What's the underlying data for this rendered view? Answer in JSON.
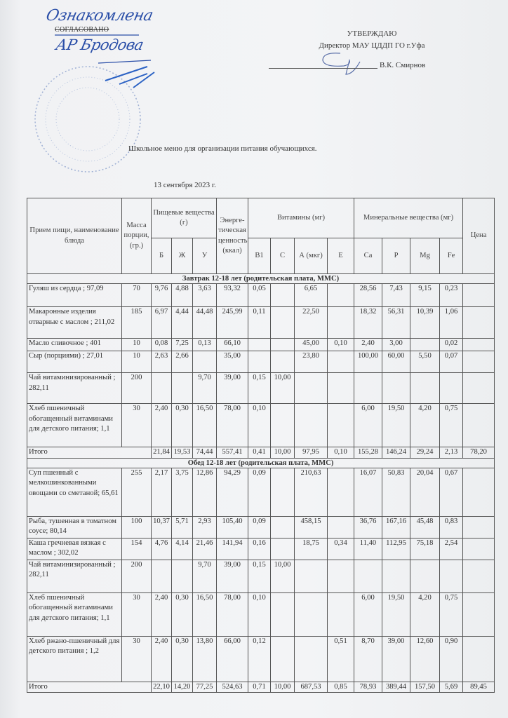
{
  "header": {
    "agreed_handwritten": "Ознакомлена",
    "agreed_label": "СОГЛАСОВАНО",
    "agreed_signature": "АР Бродова",
    "approve_label": "УТВЕРЖДАЮ",
    "approve_position": "Директор МАУ ЦДДП ГО г.Уфа",
    "approve_name": "В.К. Смирнов"
  },
  "title": "Школьное меню для организации питания обучающихся.",
  "date": "13 сентября 2023 г.",
  "table": {
    "headers": {
      "meal": "Прием пищи, наименование блюда",
      "mass": "Масса порции, (гр.)",
      "nutrients": "Пищевые вещества (г)",
      "energy": "Энерге-тическая ценность (ккал)",
      "vitamins": "Витамины (мг)",
      "minerals": "Минеральные вещества (мг)",
      "price": "Цена",
      "sub": [
        "Б",
        "Ж",
        "У",
        "B1",
        "C",
        "А (мкг)",
        "E",
        "Ca",
        "P",
        "Mg",
        "Fe"
      ]
    },
    "sections": [
      {
        "title": "Завтрак 12-18 лет (родительская плата, ММС)",
        "rows": [
          {
            "name": "Гуляш из сердца ; 97,09",
            "cells": [
              "70",
              "9,76",
              "4,88",
              "3,63",
              "93,32",
              "0,05",
              "",
              "6,65",
              "",
              "28,56",
              "7,43",
              "9,15",
              "0,23",
              ""
            ]
          },
          {
            "name": "Макаронные изделия отварные с маслом ; 211,02",
            "cells": [
              "185",
              "6,97",
              "4,44",
              "44,48",
              "245,99",
              "0,11",
              "",
              "22,50",
              "",
              "18,32",
              "56,31",
              "10,39",
              "1,06",
              ""
            ]
          },
          {
            "name": "Масло сливочное ; 401",
            "cells": [
              "10",
              "0,08",
              "7,25",
              "0,13",
              "66,10",
              "",
              "",
              "45,00",
              "0,10",
              "2,40",
              "3,00",
              "",
              "0,02",
              ""
            ]
          },
          {
            "name": "Сыр (порциями) ; 27,01",
            "cells": [
              "10",
              "2,63",
              "2,66",
              "",
              "35,00",
              "",
              "",
              "23,80",
              "",
              "100,00",
              "60,00",
              "5,50",
              "0,07",
              ""
            ]
          },
          {
            "name": "Чай витаминизированный ; 282,11",
            "cells": [
              "200",
              "",
              "",
              "9,70",
              "39,00",
              "0,15",
              "10,00",
              "",
              "",
              "",
              "",
              "",
              "",
              ""
            ]
          },
          {
            "name": "Хлеб пшеничный обогащенный витаминами для детского питания; 1,1",
            "cells": [
              "30",
              "2,40",
              "0,30",
              "16,50",
              "78,00",
              "0,10",
              "",
              "",
              "",
              "6,00",
              "19,50",
              "4,20",
              "0,75",
              ""
            ]
          }
        ],
        "total": {
          "name": "Итого",
          "cells": [
            "",
            "21,84",
            "19,53",
            "74,44",
            "557,41",
            "0,41",
            "10,00",
            "97,95",
            "0,10",
            "155,28",
            "146,24",
            "29,24",
            "2,13",
            "78,20"
          ]
        }
      },
      {
        "title": "Обед 12-18 лет (родительская плата, ММС)",
        "rows": [
          {
            "name": "Суп пшенный с мелкошинкованными овощами со сметаной; 65,61",
            "cells": [
              "255",
              "2,17",
              "3,75",
              "12,86",
              "94,29",
              "0,09",
              "",
              "210,63",
              "",
              "16,07",
              "50,83",
              "20,04",
              "0,67",
              ""
            ]
          },
          {
            "name": "Рыба, тушенная в томатном соусе; 80,14",
            "cells": [
              "100",
              "10,37",
              "5,71",
              "2,93",
              "105,40",
              "0,09",
              "",
              "458,15",
              "",
              "36,76",
              "167,16",
              "45,48",
              "0,83",
              ""
            ]
          },
          {
            "name": "Каша гречневая вязкая с маслом ; 302,02",
            "cells": [
              "154",
              "4,76",
              "4,14",
              "21,46",
              "141,94",
              "0,16",
              "",
              "18,75",
              "0,34",
              "11,40",
              "112,95",
              "75,18",
              "2,54",
              ""
            ]
          },
          {
            "name": "Чай витаминизированный ; 282,11",
            "cells": [
              "200",
              "",
              "",
              "9,70",
              "39,00",
              "0,15",
              "10,00",
              "",
              "",
              "",
              "",
              "",
              "",
              ""
            ]
          },
          {
            "name": "Хлеб пшеничный обогащенный витаминами для детского питания; 1,1",
            "cells": [
              "30",
              "2,40",
              "0,30",
              "16,50",
              "78,00",
              "0,10",
              "",
              "",
              "",
              "6,00",
              "19,50",
              "4,20",
              "0,75",
              ""
            ]
          },
          {
            "name": "Хлеб ржано-пшеничный для детского питания ; 1,2",
            "cells": [
              "30",
              "2,40",
              "0,30",
              "13,80",
              "66,00",
              "0,12",
              "",
              "",
              "0,51",
              "8,70",
              "39,00",
              "12,60",
              "0,90",
              ""
            ]
          }
        ],
        "total": {
          "name": "Итого",
          "cells": [
            "",
            "22,10",
            "14,20",
            "77,25",
            "524,63",
            "0,71",
            "10,00",
            "687,53",
            "0,85",
            "78,93",
            "389,44",
            "157,50",
            "5,69",
            "89,45"
          ]
        }
      }
    ]
  },
  "colors": {
    "ink_blue": "#2b4fa8",
    "paper": "#f1f2f4",
    "lines": "#555555"
  }
}
